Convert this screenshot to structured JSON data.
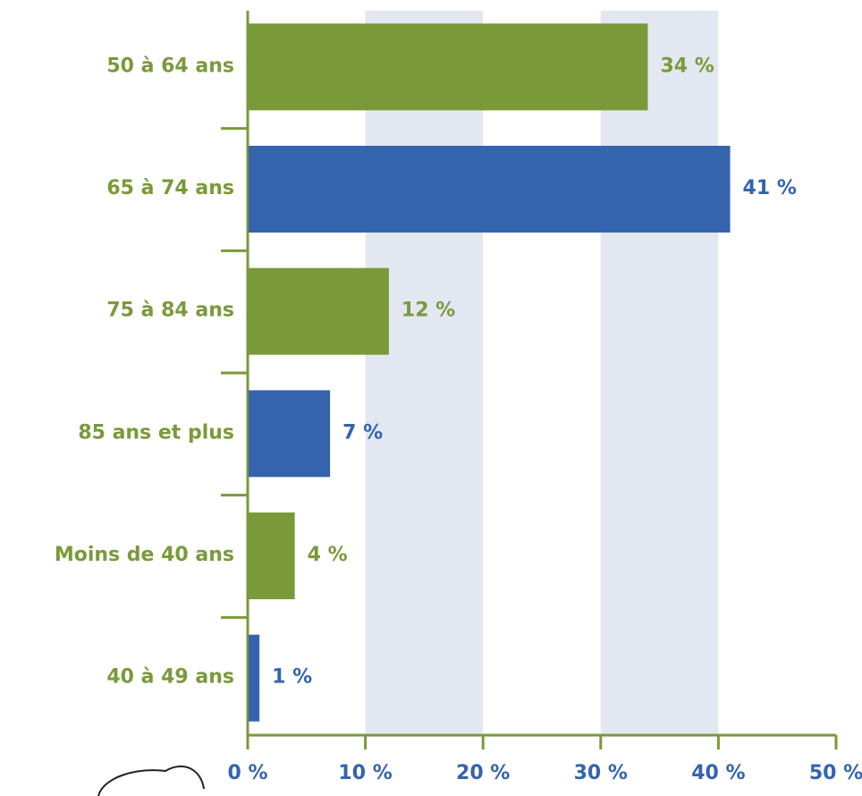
{
  "chart_data": {
    "type": "barh",
    "categories": [
      "50 à 64 ans",
      "65 à 74 ans",
      "75 à 84 ans",
      "85 ans et plus",
      "Moins de 40 ans",
      "40 à 49 ans"
    ],
    "values": [
      34,
      41,
      12,
      7,
      4,
      1
    ],
    "value_labels": [
      "34 %",
      "41 %",
      "12 %",
      "7 %",
      "4 %",
      "1 %"
    ],
    "colors": [
      "#7a9a3a",
      "#3464ae",
      "#7a9a3a",
      "#3464ae",
      "#7a9a3a",
      "#3464ae"
    ],
    "xlim": [
      0,
      50
    ],
    "xticks": [
      {
        "value": 0,
        "label": "0 %"
      },
      {
        "value": 10,
        "label": "10 %"
      },
      {
        "value": 20,
        "label": "20 %"
      },
      {
        "value": 30,
        "label": "30 %"
      },
      {
        "value": 40,
        "label": "40 %"
      },
      {
        "value": 50,
        "label": "50 %"
      }
    ],
    "grid": true,
    "grid_color": "#e3e7f1",
    "axis_color": "#7a9a3a"
  }
}
